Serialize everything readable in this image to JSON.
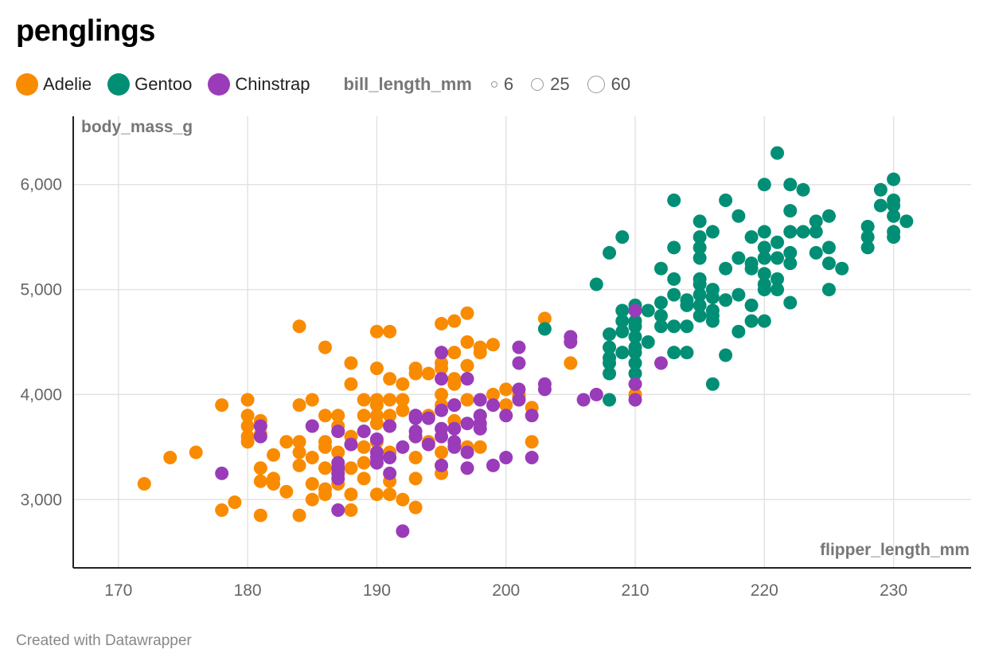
{
  "title": "penglings",
  "footer": "Created with Datawrapper",
  "legend": {
    "species": [
      {
        "name": "Adelie",
        "color": "#f98b00"
      },
      {
        "name": "Gentoo",
        "color": "#008f75"
      },
      {
        "name": "Chinstrap",
        "color": "#9a3bb9"
      }
    ],
    "size_title": "bill_length_mm",
    "sizes": [
      "6",
      "25",
      "60"
    ]
  },
  "chart_data": {
    "type": "scatter",
    "title": "penglings",
    "xlabel": "flipper_length_mm",
    "ylabel": "body_mass_g",
    "xlim": [
      166.5,
      236
    ],
    "ylim": [
      2350,
      6650
    ],
    "x_ticks": [
      170,
      180,
      190,
      200,
      210,
      220,
      230
    ],
    "y_ticks": [
      3000,
      4000,
      5000,
      6000
    ],
    "x_tick_labels": [
      "170",
      "180",
      "190",
      "200",
      "210",
      "220",
      "230"
    ],
    "y_tick_labels": [
      "3,000",
      "4,000",
      "5,000",
      "6,000"
    ],
    "grid": true,
    "legend_position": "top-left",
    "series": [
      {
        "name": "Adelie",
        "color": "#f98b00",
        "points": [
          [
            172,
            3150
          ],
          [
            174,
            3400
          ],
          [
            176,
            3450
          ],
          [
            178,
            3900
          ],
          [
            178,
            2900
          ],
          [
            179,
            2975
          ],
          [
            180,
            3950
          ],
          [
            180,
            3800
          ],
          [
            180,
            3700
          ],
          [
            180,
            3600
          ],
          [
            180,
            3550
          ],
          [
            181,
            3750
          ],
          [
            181,
            3625
          ],
          [
            181,
            3300
          ],
          [
            181,
            3175
          ],
          [
            181,
            2850
          ],
          [
            182,
            3425
          ],
          [
            182,
            3200
          ],
          [
            182,
            3150
          ],
          [
            183,
            3550
          ],
          [
            183,
            3075
          ],
          [
            184,
            4650
          ],
          [
            184,
            3900
          ],
          [
            184,
            3550
          ],
          [
            184,
            3450
          ],
          [
            184,
            3325
          ],
          [
            184,
            2850
          ],
          [
            185,
            3950
          ],
          [
            185,
            3700
          ],
          [
            185,
            3400
          ],
          [
            185,
            3150
          ],
          [
            185,
            3000
          ],
          [
            186,
            4450
          ],
          [
            186,
            3800
          ],
          [
            186,
            3550
          ],
          [
            186,
            3500
          ],
          [
            186,
            3300
          ],
          [
            186,
            3100
          ],
          [
            186,
            3050
          ],
          [
            187,
            3800
          ],
          [
            187,
            3700
          ],
          [
            187,
            3650
          ],
          [
            187,
            3450
          ],
          [
            187,
            3300
          ],
          [
            187,
            3250
          ],
          [
            187,
            3150
          ],
          [
            188,
            4300
          ],
          [
            188,
            4100
          ],
          [
            188,
            3600
          ],
          [
            188,
            3300
          ],
          [
            188,
            3050
          ],
          [
            188,
            2900
          ],
          [
            189,
            3950
          ],
          [
            189,
            3800
          ],
          [
            189,
            3650
          ],
          [
            189,
            3500
          ],
          [
            189,
            3350
          ],
          [
            189,
            3200
          ],
          [
            190,
            4600
          ],
          [
            190,
            4250
          ],
          [
            190,
            3950
          ],
          [
            190,
            3900
          ],
          [
            190,
            3800
          ],
          [
            190,
            3725
          ],
          [
            190,
            3550
          ],
          [
            190,
            3450
          ],
          [
            190,
            3350
          ],
          [
            190,
            3050
          ],
          [
            191,
            4600
          ],
          [
            191,
            4150
          ],
          [
            191,
            3950
          ],
          [
            191,
            3800
          ],
          [
            191,
            3700
          ],
          [
            191,
            3450
          ],
          [
            191,
            3175
          ],
          [
            191,
            3050
          ],
          [
            192,
            4100
          ],
          [
            192,
            3950
          ],
          [
            192,
            3850
          ],
          [
            192,
            3000
          ],
          [
            193,
            4250
          ],
          [
            193,
            4200
          ],
          [
            193,
            3800
          ],
          [
            193,
            3600
          ],
          [
            193,
            3400
          ],
          [
            193,
            3200
          ],
          [
            193,
            2925
          ],
          [
            194,
            4200
          ],
          [
            194,
            3800
          ],
          [
            194,
            3550
          ],
          [
            195,
            4675
          ],
          [
            195,
            4300
          ],
          [
            195,
            4250
          ],
          [
            195,
            4000
          ],
          [
            195,
            3900
          ],
          [
            195,
            3450
          ],
          [
            195,
            3325
          ],
          [
            195,
            3250
          ],
          [
            196,
            4700
          ],
          [
            196,
            4400
          ],
          [
            196,
            4150
          ],
          [
            196,
            4100
          ],
          [
            196,
            3900
          ],
          [
            196,
            3750
          ],
          [
            197,
            4775
          ],
          [
            197,
            4500
          ],
          [
            197,
            4275
          ],
          [
            197,
            3950
          ],
          [
            197,
            3500
          ],
          [
            198,
            4450
          ],
          [
            198,
            4400
          ],
          [
            198,
            3800
          ],
          [
            198,
            3500
          ],
          [
            199,
            4475
          ],
          [
            199,
            4000
          ],
          [
            200,
            4050
          ],
          [
            200,
            3900
          ],
          [
            201,
            4000
          ],
          [
            201,
            3975
          ],
          [
            202,
            3875
          ],
          [
            202,
            3550
          ],
          [
            203,
            4725
          ],
          [
            205,
            4300
          ],
          [
            210,
            4000
          ]
        ]
      },
      {
        "name": "Gentoo",
        "color": "#008f75",
        "points": [
          [
            203,
            4625
          ],
          [
            207,
            5050
          ],
          [
            208,
            5350
          ],
          [
            208,
            4575
          ],
          [
            208,
            4450
          ],
          [
            208,
            4350
          ],
          [
            208,
            4300
          ],
          [
            208,
            4200
          ],
          [
            208,
            3950
          ],
          [
            209,
            5500
          ],
          [
            209,
            4800
          ],
          [
            209,
            4700
          ],
          [
            209,
            4600
          ],
          [
            209,
            4400
          ],
          [
            210,
            4850
          ],
          [
            210,
            4700
          ],
          [
            210,
            4650
          ],
          [
            210,
            4550
          ],
          [
            210,
            4450
          ],
          [
            210,
            4400
          ],
          [
            210,
            4300
          ],
          [
            210,
            4200
          ],
          [
            211,
            4800
          ],
          [
            211,
            4500
          ],
          [
            212,
            5200
          ],
          [
            212,
            4875
          ],
          [
            212,
            4750
          ],
          [
            212,
            4650
          ],
          [
            213,
            5850
          ],
          [
            213,
            5400
          ],
          [
            213,
            5100
          ],
          [
            213,
            4950
          ],
          [
            213,
            4650
          ],
          [
            213,
            4400
          ],
          [
            214,
            4900
          ],
          [
            214,
            4850
          ],
          [
            214,
            4650
          ],
          [
            214,
            4400
          ],
          [
            215,
            5650
          ],
          [
            215,
            5500
          ],
          [
            215,
            5400
          ],
          [
            215,
            5300
          ],
          [
            215,
            5100
          ],
          [
            215,
            5050
          ],
          [
            215,
            4950
          ],
          [
            215,
            4850
          ],
          [
            215,
            4750
          ],
          [
            216,
            5550
          ],
          [
            216,
            5000
          ],
          [
            216,
            4925
          ],
          [
            216,
            4800
          ],
          [
            216,
            4750
          ],
          [
            216,
            4700
          ],
          [
            216,
            4100
          ],
          [
            217,
            5850
          ],
          [
            217,
            5200
          ],
          [
            217,
            4900
          ],
          [
            217,
            4375
          ],
          [
            218,
            5700
          ],
          [
            218,
            5300
          ],
          [
            218,
            4950
          ],
          [
            218,
            4600
          ],
          [
            219,
            5500
          ],
          [
            219,
            5250
          ],
          [
            219,
            5200
          ],
          [
            219,
            4850
          ],
          [
            219,
            4700
          ],
          [
            220,
            6000
          ],
          [
            220,
            5550
          ],
          [
            220,
            5400
          ],
          [
            220,
            5300
          ],
          [
            220,
            5150
          ],
          [
            220,
            5050
          ],
          [
            220,
            5000
          ],
          [
            220,
            4700
          ],
          [
            221,
            6300
          ],
          [
            221,
            5450
          ],
          [
            221,
            5300
          ],
          [
            221,
            5100
          ],
          [
            221,
            5000
          ],
          [
            222,
            6000
          ],
          [
            222,
            5750
          ],
          [
            222,
            5550
          ],
          [
            222,
            5350
          ],
          [
            222,
            5250
          ],
          [
            222,
            4875
          ],
          [
            223,
            5950
          ],
          [
            223,
            5550
          ],
          [
            224,
            5650
          ],
          [
            224,
            5550
          ],
          [
            224,
            5350
          ],
          [
            225,
            5700
          ],
          [
            225,
            5400
          ],
          [
            225,
            5250
          ],
          [
            225,
            5000
          ],
          [
            226,
            5200
          ],
          [
            228,
            5600
          ],
          [
            228,
            5500
          ],
          [
            228,
            5400
          ],
          [
            229,
            5950
          ],
          [
            229,
            5800
          ],
          [
            230,
            6050
          ],
          [
            230,
            5850
          ],
          [
            230,
            5800
          ],
          [
            230,
            5700
          ],
          [
            230,
            5550
          ],
          [
            230,
            5500
          ],
          [
            231,
            5650
          ]
        ]
      },
      {
        "name": "Chinstrap",
        "color": "#9a3bb9",
        "points": [
          [
            178,
            3250
          ],
          [
            181,
            3700
          ],
          [
            181,
            3600
          ],
          [
            185,
            3700
          ],
          [
            187,
            3650
          ],
          [
            187,
            3350
          ],
          [
            187,
            3300
          ],
          [
            187,
            3250
          ],
          [
            187,
            3200
          ],
          [
            187,
            2900
          ],
          [
            188,
            3525
          ],
          [
            189,
            3650
          ],
          [
            190,
            3575
          ],
          [
            190,
            3450
          ],
          [
            190,
            3400
          ],
          [
            190,
            3350
          ],
          [
            191,
            3700
          ],
          [
            191,
            3400
          ],
          [
            191,
            3250
          ],
          [
            192,
            3500
          ],
          [
            192,
            2700
          ],
          [
            193,
            3800
          ],
          [
            193,
            3775
          ],
          [
            193,
            3650
          ],
          [
            193,
            3600
          ],
          [
            194,
            3775
          ],
          [
            194,
            3525
          ],
          [
            195,
            4400
          ],
          [
            195,
            4150
          ],
          [
            195,
            3850
          ],
          [
            195,
            3675
          ],
          [
            195,
            3600
          ],
          [
            195,
            3325
          ],
          [
            196,
            3900
          ],
          [
            196,
            3675
          ],
          [
            196,
            3550
          ],
          [
            196,
            3500
          ],
          [
            197,
            4150
          ],
          [
            197,
            3725
          ],
          [
            197,
            3450
          ],
          [
            197,
            3300
          ],
          [
            198,
            3950
          ],
          [
            198,
            3800
          ],
          [
            198,
            3725
          ],
          [
            198,
            3675
          ],
          [
            199,
            3900
          ],
          [
            199,
            3325
          ],
          [
            200,
            3800
          ],
          [
            200,
            3400
          ],
          [
            201,
            4450
          ],
          [
            201,
            4300
          ],
          [
            201,
            4050
          ],
          [
            201,
            3950
          ],
          [
            202,
            3800
          ],
          [
            202,
            3400
          ],
          [
            203,
            4100
          ],
          [
            203,
            4050
          ],
          [
            205,
            4550
          ],
          [
            205,
            4500
          ],
          [
            206,
            3950
          ],
          [
            207,
            4000
          ],
          [
            210,
            4800
          ],
          [
            210,
            4100
          ],
          [
            210,
            3950
          ],
          [
            212,
            4300
          ]
        ]
      }
    ]
  }
}
